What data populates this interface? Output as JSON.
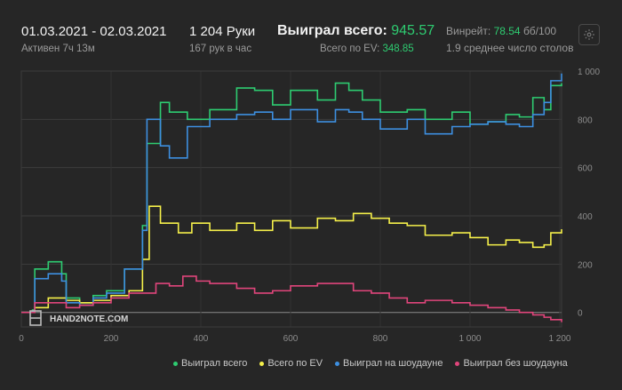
{
  "header": {
    "date_range": "01.03.2021 - 02.03.2021",
    "active": "Активен 7ч 13м",
    "hands": "1 204 Руки",
    "hands_per_hour": "167 рук в час",
    "won_total_label": "Выиграл всего:",
    "won_total_value": "945.57",
    "ev_label": "Всего по EV:",
    "ev_value": "348.85",
    "winrate_label": "Винрейт:",
    "winrate_value": "78.54",
    "winrate_unit": "бб/100",
    "avg_tables": "1.9 среднее число столов"
  },
  "watermark": "HAND2NOTE.COM",
  "icons": {
    "settings": "gear-icon",
    "logo": "h2n-logo-icon"
  },
  "colors": {
    "green": "#2ecc71",
    "yellow": "#f5f04a",
    "blue": "#3d8fe0",
    "pink": "#e0457b"
  },
  "chart_data": {
    "type": "line",
    "xlim": [
      0,
      1204
    ],
    "ylim": [
      -60,
      1000
    ],
    "x_ticks": [
      "0",
      "200",
      "400",
      "600",
      "800",
      "1 000",
      "1 200"
    ],
    "y_ticks": [
      "0",
      "200",
      "400",
      "600",
      "800",
      "1 000"
    ],
    "grid": true,
    "legend_position": "bottom",
    "series": [
      {
        "name": "Выиграл всего",
        "color": "#2ecc71",
        "x": [
          0,
          25,
          30,
          60,
          90,
          100,
          130,
          160,
          190,
          230,
          270,
          280,
          310,
          330,
          370,
          420,
          480,
          520,
          560,
          600,
          660,
          700,
          730,
          760,
          800,
          860,
          900,
          960,
          1000,
          1040,
          1080,
          1110,
          1140,
          1165,
          1180,
          1204
        ],
        "y": [
          0,
          10,
          180,
          210,
          160,
          60,
          40,
          70,
          90,
          180,
          360,
          700,
          870,
          830,
          800,
          840,
          930,
          920,
          860,
          920,
          880,
          950,
          920,
          880,
          830,
          840,
          800,
          830,
          780,
          790,
          820,
          810,
          890,
          840,
          940,
          950
        ]
      },
      {
        "name": "Всего по EV",
        "color": "#f5f04a",
        "x": [
          0,
          30,
          60,
          100,
          130,
          160,
          200,
          240,
          270,
          285,
          310,
          350,
          380,
          420,
          480,
          520,
          560,
          600,
          660,
          700,
          740,
          780,
          820,
          860,
          900,
          960,
          1000,
          1040,
          1080,
          1110,
          1140,
          1165,
          1180,
          1204
        ],
        "y": [
          0,
          20,
          60,
          50,
          40,
          50,
          70,
          90,
          220,
          440,
          370,
          330,
          370,
          340,
          370,
          340,
          380,
          350,
          390,
          380,
          410,
          390,
          370,
          360,
          320,
          330,
          310,
          280,
          300,
          290,
          270,
          280,
          330,
          345
        ]
      },
      {
        "name": "Выиграл на шоудауне",
        "color": "#3d8fe0",
        "x": [
          0,
          25,
          30,
          60,
          90,
          100,
          130,
          160,
          190,
          230,
          270,
          280,
          310,
          330,
          370,
          420,
          480,
          520,
          560,
          600,
          660,
          700,
          730,
          760,
          800,
          860,
          900,
          960,
          1000,
          1040,
          1080,
          1110,
          1140,
          1165,
          1180,
          1204
        ],
        "y": [
          0,
          5,
          140,
          160,
          130,
          40,
          30,
          60,
          80,
          180,
          340,
          800,
          690,
          640,
          770,
          800,
          820,
          830,
          800,
          840,
          790,
          840,
          830,
          800,
          760,
          800,
          740,
          770,
          780,
          790,
          780,
          770,
          820,
          870,
          960,
          990
        ]
      },
      {
        "name": "Выиграл без шоудауна",
        "color": "#e0457b",
        "x": [
          0,
          30,
          60,
          100,
          130,
          160,
          200,
          240,
          270,
          300,
          330,
          360,
          390,
          420,
          480,
          520,
          560,
          600,
          660,
          700,
          740,
          780,
          820,
          860,
          900,
          960,
          1000,
          1040,
          1080,
          1110,
          1140,
          1165,
          1180,
          1204
        ],
        "y": [
          0,
          40,
          40,
          20,
          30,
          40,
          60,
          80,
          80,
          120,
          110,
          150,
          130,
          120,
          100,
          80,
          90,
          110,
          120,
          120,
          90,
          80,
          60,
          40,
          50,
          40,
          30,
          20,
          10,
          0,
          -10,
          -20,
          -30,
          -40
        ]
      }
    ]
  }
}
